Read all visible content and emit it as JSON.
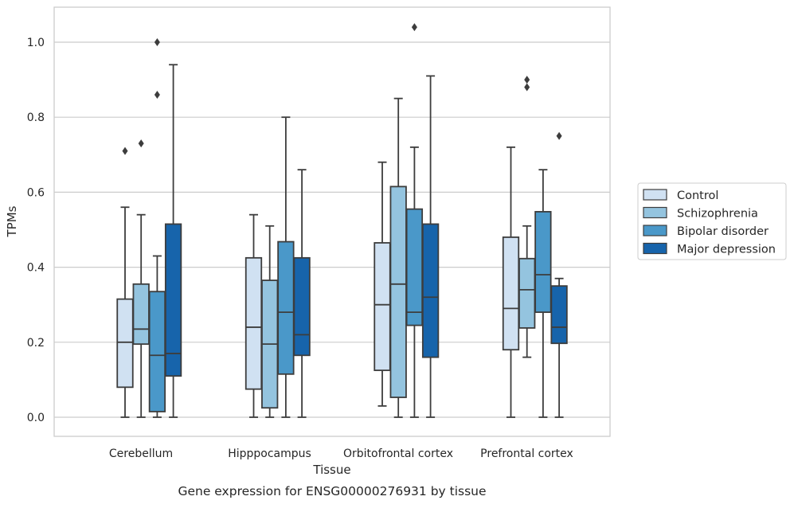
{
  "chart_data": {
    "type": "boxplot",
    "caption": "Gene expression for ENSG00000276931 by tissue",
    "xlabel": "Tissue",
    "ylabel": "TPMs",
    "ylim": [
      -0.05,
      1.09
    ],
    "yticks": [
      "0.0",
      "0.2",
      "0.4",
      "0.6",
      "0.8",
      "1.0"
    ],
    "grid": "horizontal",
    "legend_position": "outside right",
    "categories": [
      "Cerebellum",
      "Hipppocampus",
      "Orbitofrontal cortex",
      "Prefrontal cortex"
    ],
    "series": [
      {
        "name": "Control",
        "color": "#d0e1f2",
        "boxes": [
          {
            "whislo": 0.0,
            "q1": 0.08,
            "med": 0.2,
            "q3": 0.315,
            "whishi": 0.56,
            "fliers": [
              0.71
            ]
          },
          {
            "whislo": 0.0,
            "q1": 0.075,
            "med": 0.24,
            "q3": 0.425,
            "whishi": 0.54,
            "fliers": []
          },
          {
            "whislo": 0.03,
            "q1": 0.125,
            "med": 0.3,
            "q3": 0.465,
            "whishi": 0.68,
            "fliers": []
          },
          {
            "whislo": 0.0,
            "q1": 0.18,
            "med": 0.29,
            "q3": 0.48,
            "whishi": 0.72,
            "fliers": []
          }
        ]
      },
      {
        "name": "Schizophrenia",
        "color": "#94c4df",
        "boxes": [
          {
            "whislo": 0.0,
            "q1": 0.195,
            "med": 0.235,
            "q3": 0.355,
            "whishi": 0.54,
            "fliers": [
              0.73
            ]
          },
          {
            "whislo": 0.0,
            "q1": 0.025,
            "med": 0.195,
            "q3": 0.365,
            "whishi": 0.51,
            "fliers": []
          },
          {
            "whislo": 0.0,
            "q1": 0.053,
            "med": 0.355,
            "q3": 0.615,
            "whishi": 0.85,
            "fliers": []
          },
          {
            "whislo": 0.16,
            "q1": 0.238,
            "med": 0.34,
            "q3": 0.423,
            "whishi": 0.51,
            "fliers": [
              0.88,
              0.9
            ]
          }
        ]
      },
      {
        "name": "Bipolar disorder",
        "color": "#4a98c9",
        "boxes": [
          {
            "whislo": 0.0,
            "q1": 0.015,
            "med": 0.165,
            "q3": 0.335,
            "whishi": 0.43,
            "fliers": [
              0.86,
              1.0
            ]
          },
          {
            "whislo": 0.0,
            "q1": 0.115,
            "med": 0.28,
            "q3": 0.468,
            "whishi": 0.8,
            "fliers": []
          },
          {
            "whislo": 0.0,
            "q1": 0.245,
            "med": 0.28,
            "q3": 0.555,
            "whishi": 0.72,
            "fliers": [
              1.04
            ]
          },
          {
            "whislo": 0.0,
            "q1": 0.28,
            "med": 0.38,
            "q3": 0.548,
            "whishi": 0.66,
            "fliers": []
          }
        ]
      },
      {
        "name": "Major depression",
        "color": "#1764ab",
        "boxes": [
          {
            "whislo": 0.0,
            "q1": 0.11,
            "med": 0.17,
            "q3": 0.515,
            "whishi": 0.94,
            "fliers": []
          },
          {
            "whislo": 0.0,
            "q1": 0.165,
            "med": 0.22,
            "q3": 0.425,
            "whishi": 0.66,
            "fliers": []
          },
          {
            "whislo": 0.0,
            "q1": 0.16,
            "med": 0.32,
            "q3": 0.515,
            "whishi": 0.91,
            "fliers": []
          },
          {
            "whislo": 0.0,
            "q1": 0.197,
            "med": 0.24,
            "q3": 0.35,
            "whishi": 0.37,
            "fliers": [
              0.75
            ]
          }
        ]
      }
    ]
  }
}
